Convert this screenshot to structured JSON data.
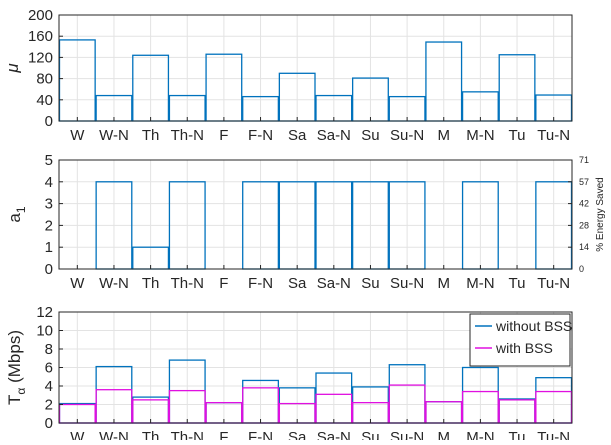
{
  "chart_data": [
    {
      "type": "bar",
      "style": "stairs",
      "categories": [
        "W",
        "W-N",
        "Th",
        "Th-N",
        "F",
        "F-N",
        "Sa",
        "Sa-N",
        "Su",
        "Su-N",
        "M",
        "M-N",
        "Tu",
        "Tu-N"
      ],
      "ylabel": "μ",
      "ylim": [
        0,
        200
      ],
      "yticks": [
        0,
        40,
        80,
        120,
        160,
        200
      ],
      "grid": true,
      "series": [
        {
          "name": "",
          "color": "#0072BD",
          "values": [
            153,
            48,
            124,
            48,
            126,
            46,
            90,
            48,
            81,
            46,
            149,
            55,
            125,
            49
          ]
        }
      ]
    },
    {
      "type": "bar",
      "style": "stairs",
      "categories": [
        "W",
        "W-N",
        "Th",
        "Th-N",
        "F",
        "F-N",
        "Sa",
        "Sa-N",
        "Su",
        "Su-N",
        "M",
        "M-N",
        "Tu",
        "Tu-N"
      ],
      "ylabel": "a",
      "ylabel_subscript": "1",
      "ylim": [
        0,
        5
      ],
      "yticks": [
        0,
        1,
        2,
        3,
        4,
        5
      ],
      "right_axis": {
        "label": "% Energy Saved",
        "ticks": [
          "0",
          "14",
          "28",
          "42",
          "57",
          "71"
        ]
      },
      "grid": true,
      "series": [
        {
          "name": "",
          "color": "#0072BD",
          "values": [
            0,
            4,
            1,
            4,
            0,
            4,
            4,
            4,
            4,
            4,
            0,
            4,
            0,
            4
          ]
        }
      ]
    },
    {
      "type": "bar",
      "style": "stairs",
      "categories": [
        "W",
        "W-N",
        "Th",
        "Th-N",
        "F",
        "F-N",
        "Sa",
        "Sa-N",
        "Su",
        "Su-N",
        "M",
        "M-N",
        "Tu",
        "Tu-N"
      ],
      "ylabel": "T",
      "ylabel_subscript": "α",
      "ylabel_suffix": "(Mbps)",
      "ylim": [
        0,
        12
      ],
      "yticks": [
        0,
        2,
        4,
        6,
        8,
        10,
        12
      ],
      "grid": true,
      "legend_position": "top-right",
      "series": [
        {
          "name": "without BSS",
          "color": "#0072BD",
          "values": [
            2.1,
            6.1,
            2.8,
            6.8,
            2.2,
            4.6,
            3.8,
            5.4,
            3.9,
            6.3,
            2.3,
            6.0,
            2.6,
            4.9
          ]
        },
        {
          "name": "with BSS",
          "color": "#E010E0",
          "values": [
            2.0,
            3.6,
            2.5,
            3.5,
            2.2,
            3.8,
            2.1,
            3.1,
            2.2,
            4.1,
            2.3,
            3.4,
            2.5,
            3.4
          ]
        }
      ]
    }
  ]
}
